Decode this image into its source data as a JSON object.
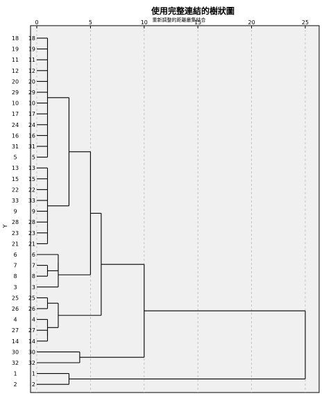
{
  "chart_data": {
    "type": "dendrogram",
    "title": "使用完整連結的樹狀圖",
    "subtitle": "重新調整的距離叢集結合",
    "y_axis_label": "Y",
    "x_axis": {
      "ticks": [
        0,
        5,
        10,
        15,
        20,
        25
      ],
      "range": [
        0,
        25
      ]
    },
    "grid": true,
    "leaves": [
      "18",
      "19",
      "11",
      "12",
      "20",
      "29",
      "10",
      "17",
      "24",
      "16",
      "31",
      "5",
      "13",
      "15",
      "22",
      "33",
      "9",
      "28",
      "23",
      "21",
      "6",
      "7",
      "8",
      "3",
      "25",
      "26",
      "4",
      "27",
      "14",
      "30",
      "32",
      "1",
      "2"
    ],
    "left_labels": [
      "18",
      "19",
      "11",
      "12",
      "20",
      "29",
      "10",
      "17",
      "24",
      "16",
      "31",
      "5",
      "13",
      "15",
      "22",
      "33",
      "9",
      "28",
      "23",
      "21",
      "6",
      "7",
      "8",
      "3",
      "25",
      "26",
      "4",
      "27",
      "14",
      "30",
      "32",
      "1",
      "2"
    ],
    "merges": [
      {
        "id": "A",
        "children": [
          "18",
          "19",
          "11",
          "12",
          "20",
          "29",
          "10",
          "17",
          "24",
          "16",
          "31",
          "5"
        ],
        "distance": 1.0
      },
      {
        "id": "B",
        "children": [
          "13",
          "15",
          "22",
          "33",
          "9",
          "28",
          "23",
          "21"
        ],
        "distance": 1.0
      },
      {
        "id": "C",
        "children": [
          "A",
          "B"
        ],
        "distance": 3.0
      },
      {
        "id": "D",
        "children": [
          "7",
          "8"
        ],
        "distance": 1.0
      },
      {
        "id": "E",
        "children": [
          "6",
          "D"
        ],
        "distance": 2.0
      },
      {
        "id": "F",
        "children": [
          "E",
          "3"
        ],
        "distance": 2.0
      },
      {
        "id": "G",
        "children": [
          "C",
          "F"
        ],
        "distance": 5.0
      },
      {
        "id": "H",
        "children": [
          "25",
          "26"
        ],
        "distance": 1.0
      },
      {
        "id": "I",
        "children": [
          "27",
          "14"
        ],
        "distance": 1.0
      },
      {
        "id": "J",
        "children": [
          "4",
          "I"
        ],
        "distance": 1.0
      },
      {
        "id": "K",
        "children": [
          "H",
          "J"
        ],
        "distance": 2.0
      },
      {
        "id": "L",
        "children": [
          "G",
          "K"
        ],
        "distance": 6.0
      },
      {
        "id": "M",
        "children": [
          "30",
          "32"
        ],
        "distance": 4.0
      },
      {
        "id": "N",
        "children": [
          "L",
          "M"
        ],
        "distance": 10.0
      },
      {
        "id": "O",
        "children": [
          "1",
          "2"
        ],
        "distance": 3.0
      },
      {
        "id": "P",
        "children": [
          "N",
          "O"
        ],
        "distance": 25.0
      }
    ]
  }
}
